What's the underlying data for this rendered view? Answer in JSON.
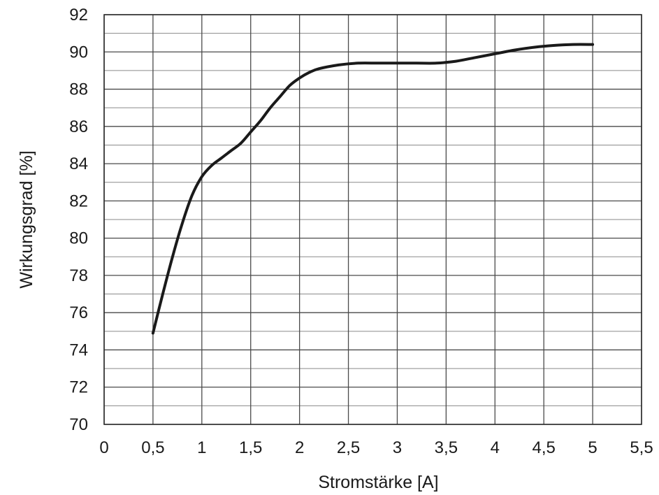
{
  "chart_data": {
    "type": "line",
    "title": "",
    "xlabel": "Stromstärke [A]",
    "ylabel": "Wirkungsgrad [%]",
    "xlim": [
      0,
      5.5
    ],
    "ylim": [
      70,
      92
    ],
    "x_ticks": [
      0,
      0.5,
      1,
      1.5,
      2,
      2.5,
      3,
      3.5,
      4,
      4.5,
      5,
      5.5
    ],
    "x_tick_labels": [
      "0",
      "0,5",
      "1",
      "1,5",
      "2",
      "2,5",
      "3",
      "3,5",
      "4",
      "4,5",
      "5",
      "5,5"
    ],
    "y_ticks": [
      70,
      72,
      74,
      76,
      78,
      80,
      82,
      84,
      86,
      88,
      90,
      92
    ],
    "y_tick_labels": [
      "70",
      "72",
      "74",
      "76",
      "78",
      "80",
      "82",
      "84",
      "86",
      "88",
      "90",
      "92"
    ],
    "grid": true,
    "legend": "none",
    "series": [
      {
        "color": "#1a1a1a",
        "x": [
          0.5,
          0.6,
          0.7,
          0.8,
          0.9,
          1.0,
          1.1,
          1.2,
          1.3,
          1.4,
          1.5,
          1.6,
          1.7,
          1.8,
          1.9,
          2.0,
          2.1,
          2.2,
          2.4,
          2.6,
          2.8,
          3.0,
          3.2,
          3.4,
          3.6,
          3.8,
          4.0,
          4.2,
          4.4,
          4.6,
          4.8,
          5.0
        ],
        "values": [
          74.9,
          77.0,
          79.0,
          80.8,
          82.3,
          83.3,
          83.9,
          84.3,
          84.7,
          85.1,
          85.7,
          86.3,
          87.0,
          87.6,
          88.2,
          88.6,
          88.9,
          89.1,
          89.3,
          89.4,
          89.4,
          89.4,
          89.4,
          89.4,
          89.5,
          89.7,
          89.9,
          90.1,
          90.25,
          90.35,
          90.4,
          90.4
        ]
      }
    ]
  }
}
